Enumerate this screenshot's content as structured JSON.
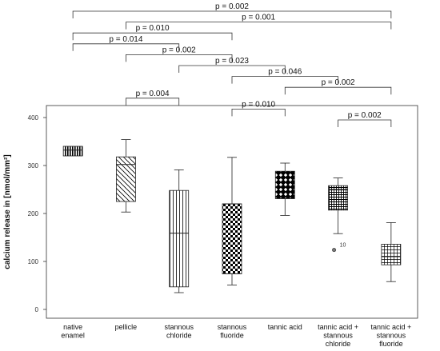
{
  "chart_data": {
    "type": "box",
    "ylabel": "calcium release in [nmol/mm²]",
    "ylim": [
      0,
      420
    ],
    "yticks": [
      0,
      100,
      200,
      300,
      400
    ],
    "grid": false,
    "categories": [
      {
        "lines": [
          "native",
          "enamel"
        ],
        "min": 320,
        "q1": 320,
        "median": 332,
        "q3": 340,
        "max": 340,
        "pattern": "vlines"
      },
      {
        "lines": [
          "pellicle"
        ],
        "min": 203,
        "q1": 225,
        "median": 302,
        "q3": 318,
        "max": 354,
        "pattern": "diag"
      },
      {
        "lines": [
          "stannous",
          "chloride"
        ],
        "min": 35,
        "q1": 47,
        "median": 159,
        "q3": 248,
        "max": 291,
        "pattern": "vlines-wide"
      },
      {
        "lines": [
          "stannous",
          "fluoride"
        ],
        "min": 51,
        "q1": 74,
        "median": 220,
        "q3": 220,
        "max": 317,
        "pattern": "checker"
      },
      {
        "lines": [
          "tannic acid"
        ],
        "min": 196,
        "q1": 231,
        "median": 231,
        "q3": 288,
        "max": 305,
        "pattern": "diamond"
      },
      {
        "lines": [
          "tannic acid +",
          "stannous",
          "chloride"
        ],
        "min": 158,
        "q1": 207,
        "median": 250,
        "q3": 258,
        "max": 274,
        "pattern": "finegrid",
        "outliers": [
          {
            "value": 124,
            "label": "10"
          }
        ]
      },
      {
        "lines": [
          "tannic acid +",
          "stannous",
          "fluoride"
        ],
        "min": 58,
        "q1": 93,
        "median": 110,
        "q3": 136,
        "max": 181,
        "pattern": "grid"
      }
    ],
    "comparisons": [
      {
        "from": 0,
        "to": 6,
        "label": "p = 0.002"
      },
      {
        "from": 0,
        "to": 3,
        "label": "p = 0.010"
      },
      {
        "from": 0,
        "to": 2,
        "label": "p = 0.014"
      },
      {
        "from": 1,
        "to": 6,
        "label": "p = 0.001"
      },
      {
        "from": 1,
        "to": 3,
        "label": "p = 0.002"
      },
      {
        "from": 1,
        "to": 2,
        "label": "p = 0.004"
      },
      {
        "from": 2,
        "to": 4,
        "label": "p = 0.023"
      },
      {
        "from": 3,
        "to": 4,
        "label": "p = 0.010"
      },
      {
        "from": 3,
        "to": 5,
        "label": "p = 0.046"
      },
      {
        "from": 4,
        "to": 6,
        "label": "p = 0.002"
      },
      {
        "from": 5,
        "to": 6,
        "label": "p = 0.002"
      }
    ]
  }
}
